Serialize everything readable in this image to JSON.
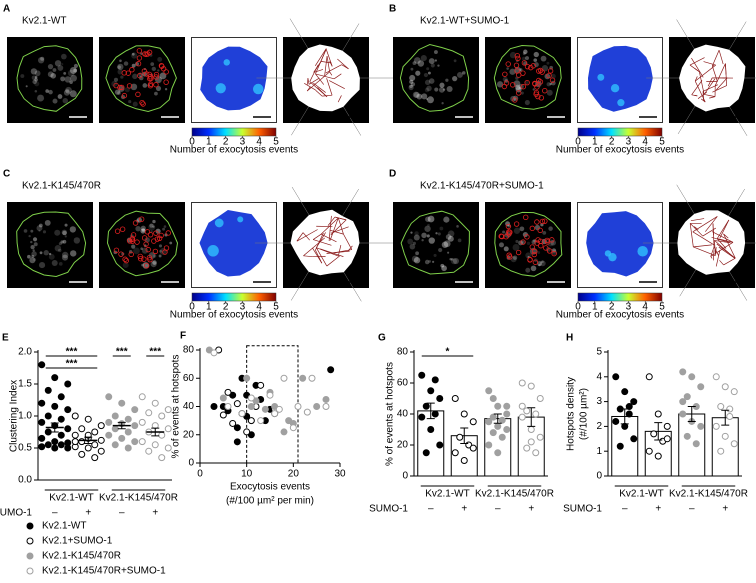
{
  "panels": [
    {
      "letter": "A",
      "title": "Kv2.1-WT"
    },
    {
      "letter": "B",
      "title": "Kv2.1-WT+SUMO-1"
    },
    {
      "letter": "C",
      "title": "Kv2.1-K145/470R"
    },
    {
      "letter": "D",
      "title": "Kv2.1-K145/470R+SUMO-1"
    }
  ],
  "colorbar": {
    "ticks": [
      0,
      1,
      2,
      3,
      4,
      5
    ],
    "label": "Number of exocytosis events"
  },
  "chart_data": [
    {
      "letter": "E",
      "type": "strip",
      "y_label": [
        "Clustering Index"
      ],
      "ylim": [
        0,
        2
      ],
      "yticks": [
        {
          "value": 0,
          "label": "0.0"
        },
        {
          "value": 0.5,
          "label": "0.5"
        },
        {
          "value": 1,
          "label": "1.0"
        },
        {
          "value": 1.5,
          "label": "1.5"
        },
        {
          "value": 2,
          "label": "2.0"
        }
      ],
      "groups": [
        "Kv2.1-WT",
        "Kv2.1-K145/470R"
      ],
      "condition_label": "SUMO-1",
      "condition_signs": [
        "–",
        "+",
        "–",
        "+"
      ],
      "series": [
        {
          "name": "Kv2.1-WT",
          "color": "#000000",
          "style": "filled",
          "values": [
            1.8,
            1.6,
            1.5,
            1.4,
            1.3,
            1.2,
            1.15,
            1.1,
            1.0,
            0.95,
            0.9,
            0.85,
            0.8,
            0.75,
            0.7,
            0.65,
            0.6,
            0.58,
            0.55,
            0.55,
            0.52,
            0.5,
            0.5
          ],
          "mean": 0.82,
          "sem": 0.07
        },
        {
          "name": "Kv2.1+SUMO-1",
          "color": "#000000",
          "style": "open",
          "values": [
            1.0,
            0.95,
            0.85,
            0.8,
            0.75,
            0.7,
            0.65,
            0.62,
            0.6,
            0.55,
            0.52,
            0.5,
            0.45,
            0.4,
            0.35,
            0.6,
            0.7
          ],
          "mean": 0.62,
          "sem": 0.05
        },
        {
          "name": "Kv2.1-K145/470R",
          "color": "#a0a0a0",
          "style": "filled",
          "values": [
            1.3,
            1.2,
            1.1,
            1.0,
            0.95,
            0.9,
            0.88,
            0.85,
            0.8,
            0.75,
            0.7,
            0.65,
            0.6,
            0.55,
            0.5
          ],
          "mean": 0.85,
          "sem": 0.05
        },
        {
          "name": "Kv2.1-K145/470R+SUMO-1",
          "color": "#a0a0a0",
          "style": "open",
          "values": [
            1.3,
            1.2,
            1.1,
            1.05,
            1.0,
            0.9,
            0.85,
            0.8,
            0.75,
            0.7,
            0.6,
            0.55,
            0.5,
            0.45,
            0.35
          ],
          "mean": 0.75,
          "sem": 0.06
        }
      ],
      "significance": [
        {
          "between": [
            0,
            1
          ],
          "label": "***"
        },
        {
          "between": [
            0,
            1
          ],
          "label": "***"
        },
        {
          "between": [
            2,
            2
          ],
          "label": "***"
        },
        {
          "between": [
            3,
            3
          ],
          "label": "***"
        }
      ]
    },
    {
      "letter": "F",
      "type": "scatter",
      "y_label": [
        "% of events at hotspots"
      ],
      "x_label": [
        "Exocytosis events",
        "(#/100 µm² per min)"
      ],
      "xlim": [
        0,
        30
      ],
      "xticks": [
        0,
        10,
        20,
        30
      ],
      "ylim": [
        0,
        80
      ],
      "yticks": [
        0,
        20,
        40,
        60,
        80
      ],
      "region": {
        "xlim": [
          10,
          21
        ],
        "ylim": [
          0,
          83
        ]
      },
      "series": [
        {
          "color": "#000000",
          "style": "filled",
          "x": [
            5,
            7,
            8,
            10,
            11,
            12,
            14,
            9,
            6,
            13,
            3,
            28,
            15,
            16,
            8,
            10
          ],
          "values": [
            40,
            48,
            25,
            33,
            20,
            55,
            30,
            60,
            37,
            45,
            40,
            66,
            38,
            35,
            15,
            48
          ]
        },
        {
          "color": "#000000",
          "style": "open",
          "x": [
            4,
            6,
            7,
            9,
            10,
            11,
            12,
            5,
            8,
            13,
            16
          ],
          "values": [
            80,
            50,
            28,
            35,
            22,
            30,
            40,
            34,
            42,
            55,
            38
          ]
        },
        {
          "color": "#a0a0a0",
          "style": "filled",
          "x": [
            2,
            5,
            10,
            11,
            12,
            14,
            15,
            16,
            18,
            19,
            20,
            22,
            25,
            27
          ],
          "values": [
            80,
            46,
            60,
            40,
            44,
            38,
            50,
            40,
            22,
            30,
            28,
            60,
            40,
            45
          ]
        },
        {
          "color": "#a0a0a0",
          "style": "open",
          "x": [
            3,
            6,
            9,
            11,
            13,
            15,
            16,
            17,
            18,
            20,
            21,
            23,
            24,
            27
          ],
          "values": [
            78,
            40,
            35,
            46,
            30,
            48,
            35,
            38,
            60,
            25,
            40,
            36,
            60,
            40
          ]
        }
      ]
    },
    {
      "letter": "G",
      "type": "bar",
      "y_label": [
        "% of events at hotspots"
      ],
      "ylim": [
        0,
        80
      ],
      "yticks": [
        0,
        20,
        40,
        60,
        80
      ],
      "groups": [
        "Kv2.1-WT",
        "Kv2.1-K145/470R"
      ],
      "condition_label": "SUMO-1",
      "condition_signs": [
        "–",
        "+",
        "–",
        "+"
      ],
      "series": [
        {
          "color": "#000000",
          "style": "filled",
          "values": [
            65,
            55,
            50,
            45,
            40,
            38,
            30,
            20,
            15,
            62
          ],
          "mean": 42,
          "sem": 5
        },
        {
          "color": "#000000",
          "style": "open",
          "values": [
            50,
            40,
            35,
            25,
            20,
            15,
            10,
            18
          ],
          "mean": 26,
          "sem": 5
        },
        {
          "color": "#a0a0a0",
          "style": "filled",
          "values": [
            55,
            45,
            40,
            38,
            36,
            35,
            32,
            30,
            28,
            25,
            20,
            15,
            45,
            50
          ],
          "mean": 37,
          "sem": 3
        },
        {
          "color": "#a0a0a0",
          "style": "open",
          "values": [
            60,
            58,
            50,
            42,
            40,
            38,
            30,
            25,
            18,
            15,
            45,
            22
          ],
          "mean": 38,
          "sem": 6
        }
      ],
      "significance": [
        {
          "between": [
            0,
            1
          ],
          "label": "*"
        }
      ]
    },
    {
      "letter": "H",
      "type": "bar",
      "y_label": [
        "Hotspots density",
        "(#/100 µm²)"
      ],
      "ylim": [
        0,
        5
      ],
      "yticks": [
        0,
        1,
        2,
        3,
        4,
        5
      ],
      "groups": [
        "Kv2.1-WT",
        "Kv2.1-K145/470R"
      ],
      "condition_label": "SUMO-1",
      "condition_signs": [
        "–",
        "+",
        "–",
        "+"
      ],
      "series": [
        {
          "color": "#000000",
          "style": "filled",
          "values": [
            4,
            3.4,
            3,
            2.7,
            2.5,
            2.2,
            2,
            1.5,
            1.2,
            2.8
          ],
          "mean": 2.4,
          "sem": 0.3
        },
        {
          "color": "#000000",
          "style": "open",
          "values": [
            4,
            2.5,
            2,
            1.7,
            1.4,
            1,
            0.8,
            1.5
          ],
          "mean": 1.8,
          "sem": 0.35
        },
        {
          "color": "#a0a0a0",
          "style": "filled",
          "values": [
            4.2,
            4.0,
            3.6,
            3.2,
            2.8,
            2.5,
            2.2,
            2,
            1.6,
            1.3,
            3
          ],
          "mean": 2.5,
          "sem": 0.3
        },
        {
          "color": "#a0a0a0",
          "style": "open",
          "values": [
            4,
            3.6,
            3.4,
            2.8,
            2.4,
            2,
            1.6,
            1.3,
            1,
            2.7
          ],
          "mean": 2.35,
          "sem": 0.3
        }
      ]
    }
  ]
}
